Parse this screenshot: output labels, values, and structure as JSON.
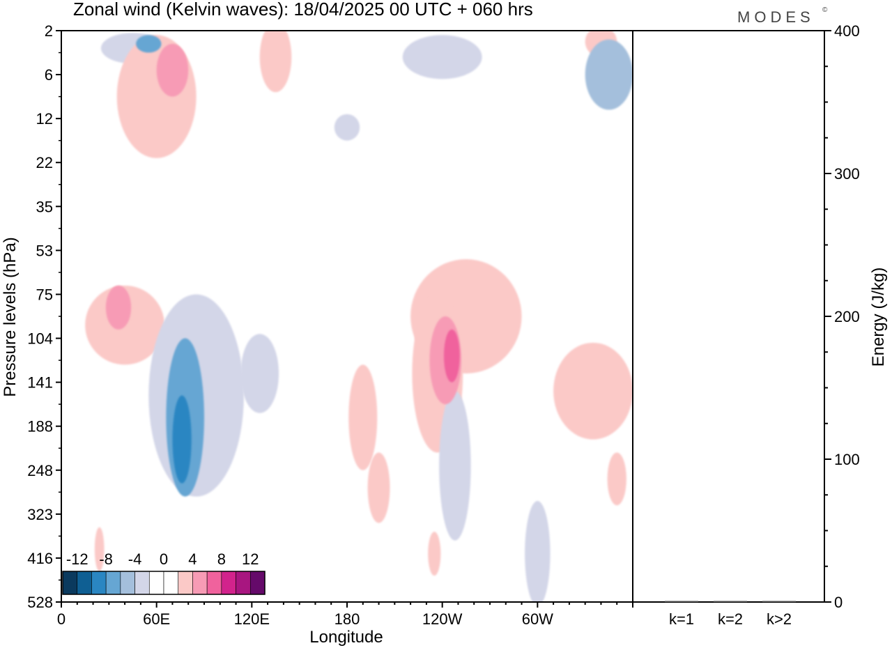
{
  "chart_data": [
    {
      "type": "heatmap",
      "title": "Zonal wind (Kelvin waves):  18/04/2025  00 UTC  + 060 hrs",
      "brand": "MODES",
      "brand_mark": "©",
      "xlabel": "Longitude",
      "ylabel": "Pressure levels (hPa)",
      "x_ticks": [
        {
          "label": "0",
          "lon": 0
        },
        {
          "label": "60E",
          "lon": 60
        },
        {
          "label": "120E",
          "lon": 120
        },
        {
          "label": "180",
          "lon": 180
        },
        {
          "label": "120W",
          "lon": 240
        },
        {
          "label": "60W",
          "lon": 300
        }
      ],
      "xlim": [
        0,
        360
      ],
      "y_levels": [
        "2",
        "6",
        "12",
        "22",
        "35",
        "53",
        "75",
        "104",
        "141",
        "188",
        "248",
        "323",
        "416",
        "528"
      ],
      "colorbar": {
        "labels": [
          "-12",
          "-8",
          "-4",
          "0",
          "4",
          "8",
          "12"
        ],
        "colors": [
          "#0b3a5e",
          "#0f5f93",
          "#2a86c2",
          "#66a6d3",
          "#a4bfdc",
          "#d3d6e8",
          "#ffffff",
          "#ffffff",
          "#fbc9c7",
          "#f79bb5",
          "#f0629d",
          "#d2238c",
          "#a81680",
          "#650a6a"
        ]
      },
      "features": [
        {
          "sign": "neg",
          "level": 1,
          "lon": 45,
          "p_index": 0.4,
          "lon_extent": 20,
          "p_extent": 0.35
        },
        {
          "sign": "neg",
          "level": 3,
          "lon": 55,
          "p_index": 0.3,
          "lon_extent": 8,
          "p_extent": 0.2
        },
        {
          "sign": "pos",
          "level": 1,
          "lon": 60,
          "p_index": 1.5,
          "lon_extent": 25,
          "p_extent": 1.4
        },
        {
          "sign": "pos",
          "level": 2,
          "lon": 70,
          "p_index": 0.9,
          "lon_extent": 10,
          "p_extent": 0.6
        },
        {
          "sign": "pos",
          "level": 1,
          "lon": 135,
          "p_index": 0.6,
          "lon_extent": 10,
          "p_extent": 0.8
        },
        {
          "sign": "neg",
          "level": 1,
          "lon": 240,
          "p_index": 0.6,
          "lon_extent": 25,
          "p_extent": 0.5
        },
        {
          "sign": "pos",
          "level": 1,
          "lon": 340,
          "p_index": 0.25,
          "lon_extent": 10,
          "p_extent": 0.35
        },
        {
          "sign": "neg",
          "level": 2,
          "lon": 345,
          "p_index": 1.0,
          "lon_extent": 15,
          "p_extent": 0.8
        },
        {
          "sign": "neg",
          "level": 1,
          "lon": 180,
          "p_index": 2.2,
          "lon_extent": 8,
          "p_extent": 0.3
        },
        {
          "sign": "pos",
          "level": 1,
          "lon": 40,
          "p_index": 6.7,
          "lon_extent": 25,
          "p_extent": 0.9
        },
        {
          "sign": "pos",
          "level": 2,
          "lon": 36,
          "p_index": 6.3,
          "lon_extent": 8,
          "p_extent": 0.5
        },
        {
          "sign": "neg",
          "level": 1,
          "lon": 85,
          "p_index": 8.3,
          "lon_extent": 30,
          "p_extent": 2.3
        },
        {
          "sign": "neg",
          "level": 3,
          "lon": 78,
          "p_index": 8.8,
          "lon_extent": 12,
          "p_extent": 1.8
        },
        {
          "sign": "neg",
          "level": 4,
          "lon": 76,
          "p_index": 9.3,
          "lon_extent": 6,
          "p_extent": 1.0
        },
        {
          "sign": "neg",
          "level": 1,
          "lon": 125,
          "p_index": 7.8,
          "lon_extent": 12,
          "p_extent": 0.9
        },
        {
          "sign": "pos",
          "level": 1,
          "lon": 255,
          "p_index": 6.5,
          "lon_extent": 35,
          "p_extent": 1.3
        },
        {
          "sign": "pos",
          "level": 1,
          "lon": 237,
          "p_index": 7.8,
          "lon_extent": 16,
          "p_extent": 1.8
        },
        {
          "sign": "pos",
          "level": 2,
          "lon": 242,
          "p_index": 7.5,
          "lon_extent": 10,
          "p_extent": 1.0
        },
        {
          "sign": "pos",
          "level": 3,
          "lon": 246,
          "p_index": 7.4,
          "lon_extent": 5,
          "p_extent": 0.6
        },
        {
          "sign": "pos",
          "level": 1,
          "lon": 190,
          "p_index": 8.8,
          "lon_extent": 9,
          "p_extent": 1.2
        },
        {
          "sign": "neg",
          "level": 1,
          "lon": 248,
          "p_index": 9.9,
          "lon_extent": 10,
          "p_extent": 1.7
        },
        {
          "sign": "pos",
          "level": 1,
          "lon": 335,
          "p_index": 8.2,
          "lon_extent": 25,
          "p_extent": 1.1
        },
        {
          "sign": "pos",
          "level": 1,
          "lon": 200,
          "p_index": 10.4,
          "lon_extent": 7,
          "p_extent": 0.8
        },
        {
          "sign": "pos",
          "level": 1,
          "lon": 350,
          "p_index": 10.2,
          "lon_extent": 6,
          "p_extent": 0.6
        },
        {
          "sign": "neg",
          "level": 1,
          "lon": 300,
          "p_index": 11.9,
          "lon_extent": 8,
          "p_extent": 1.2
        },
        {
          "sign": "pos",
          "level": 1,
          "lon": 24,
          "p_index": 11.8,
          "lon_extent": 3,
          "p_extent": 0.5
        },
        {
          "sign": "pos",
          "level": 1,
          "lon": 235,
          "p_index": 11.9,
          "lon_extent": 4,
          "p_extent": 0.5
        }
      ]
    },
    {
      "type": "bar",
      "categories": [
        "k=1",
        "k=2",
        "k>2"
      ],
      "values": [
        0,
        0,
        0
      ],
      "ylabel": "Energy (J/kg)",
      "y_ticks": [
        0,
        100,
        200,
        300,
        400
      ],
      "ylim": [
        0,
        400
      ]
    }
  ]
}
